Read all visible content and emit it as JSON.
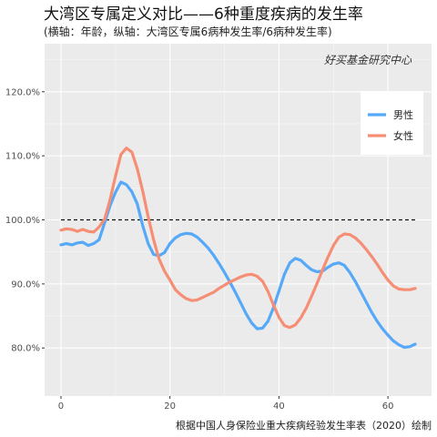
{
  "chart_data": {
    "type": "line",
    "title": "大湾区专属定义对比——6种重度疾病的发生率",
    "subtitle": "(横轴：年龄，纵轴：大湾区专属6病种发生率/6病种发生率)",
    "watermark": "好买基金研究中心",
    "caption": "根据中国人身保险业重大疾病经验发生率表（2020）绘制",
    "xlim": [
      -3,
      68
    ],
    "ylim": [
      72.5,
      127.5
    ],
    "x_ticks": [
      0,
      20,
      40,
      60
    ],
    "y_ticks": [
      80,
      90,
      100,
      110,
      120
    ],
    "y_tick_labels": [
      "80.0%",
      "90.0%",
      "100.0%",
      "110.0%",
      "120.0%"
    ],
    "reference_line": 100,
    "legend_position": "top-right",
    "series": [
      {
        "name": "男性",
        "color": "#56a8f8",
        "points": [
          [
            0,
            96.1
          ],
          [
            1,
            96.3
          ],
          [
            2,
            96.1
          ],
          [
            3,
            96.4
          ],
          [
            4,
            96.5
          ],
          [
            5,
            96.0
          ],
          [
            6,
            96.3
          ],
          [
            7,
            96.9
          ],
          [
            8,
            99.5
          ],
          [
            9,
            102.2
          ],
          [
            10,
            104.3
          ],
          [
            11,
            105.9
          ],
          [
            12,
            105.5
          ],
          [
            13,
            104.4
          ],
          [
            14,
            102.5
          ],
          [
            15,
            99.1
          ],
          [
            16,
            96.3
          ],
          [
            17,
            94.6
          ],
          [
            18,
            94.4
          ],
          [
            19,
            94.9
          ],
          [
            20,
            96.3
          ],
          [
            21,
            97.2
          ],
          [
            22,
            97.7
          ],
          [
            23,
            97.9
          ],
          [
            24,
            97.8
          ],
          [
            25,
            97.3
          ],
          [
            26,
            96.5
          ],
          [
            27,
            95.6
          ],
          [
            28,
            94.5
          ],
          [
            29,
            93.2
          ],
          [
            30,
            91.8
          ],
          [
            31,
            90.3
          ],
          [
            32,
            88.7
          ],
          [
            33,
            87.0
          ],
          [
            34,
            85.3
          ],
          [
            35,
            83.9
          ],
          [
            36,
            83.0
          ],
          [
            37,
            83.1
          ],
          [
            38,
            84.2
          ],
          [
            39,
            86.3
          ],
          [
            40,
            88.9
          ],
          [
            41,
            91.5
          ],
          [
            42,
            93.3
          ],
          [
            43,
            94.0
          ],
          [
            44,
            93.7
          ],
          [
            45,
            92.9
          ],
          [
            46,
            92.2
          ],
          [
            47,
            91.9
          ],
          [
            48,
            92.0
          ],
          [
            49,
            92.6
          ],
          [
            50,
            93.1
          ],
          [
            51,
            93.3
          ],
          [
            52,
            92.9
          ],
          [
            53,
            91.8
          ],
          [
            54,
            90.4
          ],
          [
            55,
            88.8
          ],
          [
            56,
            87.2
          ],
          [
            57,
            85.6
          ],
          [
            58,
            84.2
          ],
          [
            59,
            83.0
          ],
          [
            60,
            82.0
          ],
          [
            61,
            81.1
          ],
          [
            62,
            80.5
          ],
          [
            63,
            80.1
          ],
          [
            64,
            80.2
          ],
          [
            65,
            80.6
          ]
        ]
      },
      {
        "name": "女性",
        "color": "#f58e74",
        "points": [
          [
            0,
            98.4
          ],
          [
            1,
            98.6
          ],
          [
            2,
            98.5
          ],
          [
            3,
            98.2
          ],
          [
            4,
            98.5
          ],
          [
            5,
            98.2
          ],
          [
            6,
            98.1
          ],
          [
            7,
            98.9
          ],
          [
            8,
            100.1
          ],
          [
            9,
            103.1
          ],
          [
            10,
            106.8
          ],
          [
            11,
            110.2
          ],
          [
            12,
            111.2
          ],
          [
            13,
            110.6
          ],
          [
            14,
            108.0
          ],
          [
            15,
            104.5
          ],
          [
            16,
            100.5
          ],
          [
            17,
            96.9
          ],
          [
            18,
            93.9
          ],
          [
            19,
            92.0
          ],
          [
            20,
            90.6
          ],
          [
            21,
            89.1
          ],
          [
            22,
            88.3
          ],
          [
            23,
            87.7
          ],
          [
            24,
            87.4
          ],
          [
            25,
            87.5
          ],
          [
            26,
            87.9
          ],
          [
            27,
            88.3
          ],
          [
            28,
            88.7
          ],
          [
            29,
            89.3
          ],
          [
            30,
            89.8
          ],
          [
            31,
            90.3
          ],
          [
            32,
            90.7
          ],
          [
            33,
            91.1
          ],
          [
            34,
            91.4
          ],
          [
            35,
            91.5
          ],
          [
            36,
            91.2
          ],
          [
            37,
            90.4
          ],
          [
            38,
            88.8
          ],
          [
            39,
            86.7
          ],
          [
            40,
            84.8
          ],
          [
            41,
            83.5
          ],
          [
            42,
            83.2
          ],
          [
            43,
            83.6
          ],
          [
            44,
            84.7
          ],
          [
            45,
            86.2
          ],
          [
            46,
            88.1
          ],
          [
            47,
            90.1
          ],
          [
            48,
            92.2
          ],
          [
            49,
            94.2
          ],
          [
            50,
            96.0
          ],
          [
            51,
            97.3
          ],
          [
            52,
            97.8
          ],
          [
            53,
            97.7
          ],
          [
            54,
            97.2
          ],
          [
            55,
            96.4
          ],
          [
            56,
            95.4
          ],
          [
            57,
            94.3
          ],
          [
            58,
            93.1
          ],
          [
            59,
            91.8
          ],
          [
            60,
            90.6
          ],
          [
            61,
            89.7
          ],
          [
            62,
            89.2
          ],
          [
            63,
            89.1
          ],
          [
            64,
            89.1
          ],
          [
            65,
            89.3
          ]
        ]
      }
    ]
  }
}
